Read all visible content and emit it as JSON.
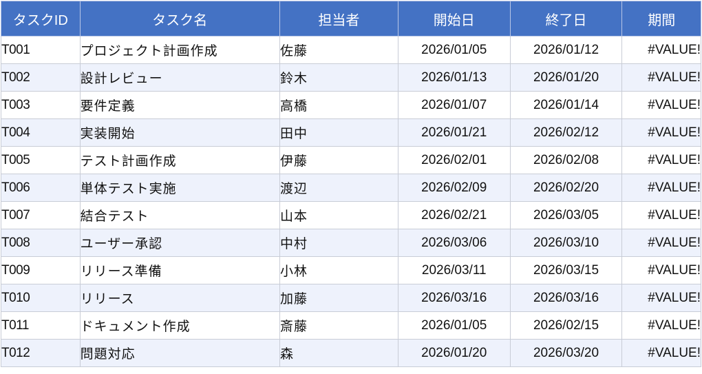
{
  "headers": {
    "task_id": "タスクID",
    "task_name": "タスク名",
    "owner": "担当者",
    "start": "開始日",
    "end": "終了日",
    "duration": "期間"
  },
  "rows": [
    {
      "id": "T001",
      "name": "プロジェクト計画作成",
      "owner": "佐藤",
      "start": "2026/01/05",
      "end": "2026/01/12",
      "duration": "#VALUE!"
    },
    {
      "id": "T002",
      "name": "設計レビュー",
      "owner": "鈴木",
      "start": "2026/01/13",
      "end": "2026/01/20",
      "duration": "#VALUE!"
    },
    {
      "id": "T003",
      "name": "要件定義",
      "owner": "高橋",
      "start": "2026/01/07",
      "end": "2026/01/14",
      "duration": "#VALUE!"
    },
    {
      "id": "T004",
      "name": "実装開始",
      "owner": "田中",
      "start": "2026/01/21",
      "end": "2026/02/12",
      "duration": "#VALUE!"
    },
    {
      "id": "T005",
      "name": "テスト計画作成",
      "owner": "伊藤",
      "start": "2026/02/01",
      "end": "2026/02/08",
      "duration": "#VALUE!"
    },
    {
      "id": "T006",
      "name": "単体テスト実施",
      "owner": "渡辺",
      "start": "2026/02/09",
      "end": "2026/02/20",
      "duration": "#VALUE!"
    },
    {
      "id": "T007",
      "name": "結合テスト",
      "owner": "山本",
      "start": "2026/02/21",
      "end": "2026/03/05",
      "duration": "#VALUE!"
    },
    {
      "id": "T008",
      "name": "ユーザー承認",
      "owner": "中村",
      "start": "2026/03/06",
      "end": "2026/03/10",
      "duration": "#VALUE!"
    },
    {
      "id": "T009",
      "name": "リリース準備",
      "owner": "小林",
      "start": "2026/03/11",
      "end": "2026/03/15",
      "duration": "#VALUE!"
    },
    {
      "id": "T010",
      "name": "リリース",
      "owner": "加藤",
      "start": "2026/03/16",
      "end": "2026/03/16",
      "duration": "#VALUE!"
    },
    {
      "id": "T011",
      "name": "ドキュメント作成",
      "owner": "斎藤",
      "start": "2026/01/05",
      "end": "2026/02/15",
      "duration": "#VALUE!"
    },
    {
      "id": "T012",
      "name": "問題対応",
      "owner": "森",
      "start": "2026/01/20",
      "end": "2026/03/20",
      "duration": "#VALUE!"
    }
  ],
  "colors": {
    "header_bg": "#4472c4",
    "header_text": "#ffffff",
    "row_alt_bg": "#eef2fc",
    "grid_line": "#c8ccd6"
  }
}
